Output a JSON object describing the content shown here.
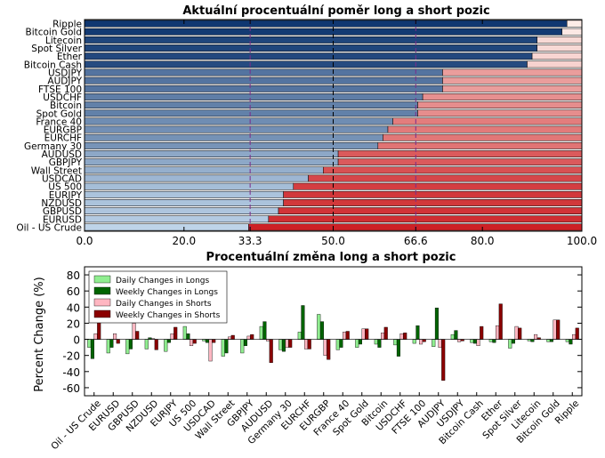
{
  "chart_data": [
    {
      "type": "bar",
      "orientation": "horizontal-stacked",
      "title": "Aktuální procentuální poměr long a short pozic",
      "categories": [
        "Oil - US Crude",
        "EURUSD",
        "GBPUSD",
        "NZDUSD",
        "EURJPY",
        "US 500",
        "USDCAD",
        "Wall Street",
        "GBPJPY",
        "AUDUSD",
        "Germany 30",
        "EURCHF",
        "EURGBP",
        "France 40",
        "Spot Gold",
        "Bitcoin",
        "USDCHF",
        "FTSE 100",
        "AUDJPY",
        "USDJPY",
        "Bitcoin Cash",
        "Ether",
        "Spot Silver",
        "Litecoin",
        "Bitcoin Gold",
        "Ripple"
      ],
      "long_percent": [
        33,
        37,
        39,
        40,
        40,
        42,
        45,
        48,
        51,
        51,
        59,
        60,
        61,
        62,
        67,
        67,
        68,
        72,
        72,
        72,
        89,
        90,
        91,
        91,
        96,
        97
      ],
      "xlim": [
        0,
        100
      ],
      "xticks": [
        "0.0",
        "20.0",
        "33.3",
        "50.0",
        "66.6",
        "80.0",
        "100.0"
      ],
      "reference_lines": [
        33.3,
        50.0,
        66.6
      ],
      "reference_line_labels": [
        "33.3",
        "66.6"
      ],
      "colors": {
        "long_dark": "#08306b",
        "long_light": "#c6dbef",
        "short_dark": "#cb181d",
        "short_light": "#fff5f0",
        "ref_line": "#7b2d8b",
        "mid_line": "#000000",
        "ref_label": "#7b2d8b"
      }
    },
    {
      "type": "bar",
      "orientation": "vertical-grouped",
      "title": "Procentuální změna long a short pozic",
      "ylabel": "Percent Change (%)",
      "ylim": [
        -70,
        90
      ],
      "yticks": [
        -60,
        -40,
        -20,
        0,
        20,
        40,
        60,
        80
      ],
      "categories": [
        "Oil - US Crude",
        "EURUSD",
        "GBPUSD",
        "NZDUSD",
        "EURJPY",
        "US 500",
        "USDCAD",
        "Wall Street",
        "GBPJPY",
        "AUDUSD",
        "Germany 30",
        "EURCHF",
        "EURGBP",
        "France 40",
        "Spot Gold",
        "Bitcoin",
        "USDCHF",
        "FTSE 100",
        "AUDJPY",
        "USDJPY",
        "Bitcoin Cash",
        "Ether",
        "Spot Silver",
        "Litecoin",
        "Bitcoin Gold",
        "Ripple"
      ],
      "series": [
        {
          "name": "Daily Changes in Longs",
          "color": "#90ee90",
          "values": [
            -10,
            -17,
            -18,
            -12,
            -15,
            16,
            -2,
            -21,
            -17,
            16,
            -13,
            9,
            31,
            -13,
            -10,
            -6,
            -7,
            -5,
            -9,
            6,
            -4,
            -3,
            -11,
            -2,
            -3,
            -3
          ]
        },
        {
          "name": "Weekly Changes in Longs",
          "color": "#006400",
          "values": [
            -24,
            -10,
            -12,
            2,
            -4,
            7,
            -4,
            -17,
            -8,
            22,
            -15,
            42,
            22,
            -10,
            -6,
            -10,
            -21,
            17,
            39,
            11,
            -5,
            -4,
            -5,
            -3,
            -3,
            -6
          ]
        },
        {
          "name": "Daily Changes in Shorts",
          "color": "#ffb6c1",
          "values": [
            7,
            7,
            20,
            1,
            7,
            -8,
            -27,
            3,
            4,
            -2,
            -10,
            -12,
            -20,
            9,
            13,
            8,
            7,
            -6,
            -10,
            -3,
            -8,
            17,
            16,
            6,
            24,
            6
          ]
        },
        {
          "name": "Weekly Changes in Shorts",
          "color": "#8b0000",
          "values": [
            23,
            -5,
            10,
            -13,
            15,
            -5,
            -4,
            5,
            6,
            -29,
            -10,
            -12,
            -25,
            10,
            13,
            15,
            8,
            -3,
            -51,
            -2,
            16,
            44,
            14,
            2,
            24,
            14
          ]
        }
      ],
      "legend_position": "top-left"
    }
  ]
}
